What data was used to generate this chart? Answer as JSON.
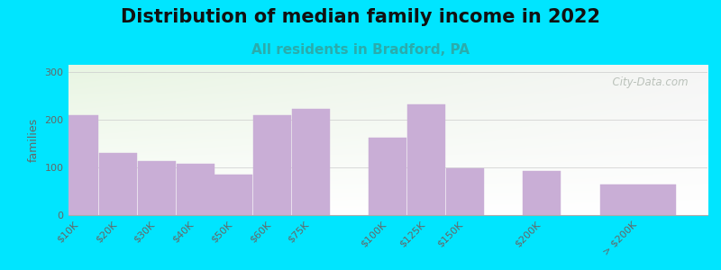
{
  "title": "Distribution of median family income in 2022",
  "subtitle": "All residents in Bradford, PA",
  "ylabel": "families",
  "categories": [
    "$10K",
    "$20K",
    "$30K",
    "$40K",
    "$50K",
    "$60K",
    "$75K",
    "$100K",
    "$125K",
    "$150K",
    "$200K",
    "> $200K"
  ],
  "values": [
    210,
    130,
    113,
    108,
    85,
    210,
    222,
    163,
    232,
    98,
    92,
    65
  ],
  "bar_positions": [
    0,
    1,
    2,
    3,
    4,
    5,
    6,
    8,
    9,
    10,
    12,
    14
  ],
  "bar_widths": [
    1,
    1,
    1,
    1,
    1,
    1,
    1,
    1,
    1,
    1,
    1,
    2
  ],
  "bar_color": "#c9aed6",
  "bar_edge_color": "#c9aed6",
  "background_color": "#00e5ff",
  "plot_bg_color_lt": "#e8f5e2",
  "plot_bg_color_rt": "#f5f5f5",
  "title_color": "#111111",
  "subtitle_color": "#2aacac",
  "ylabel_color": "#666666",
  "tick_color": "#666666",
  "yticks": [
    0,
    100,
    200,
    300
  ],
  "ylim": [
    0,
    315
  ],
  "xlim_left": -0.3,
  "xlim_right": 16.3,
  "watermark": "  City-Data.com",
  "watermark_color": "#b0b8b0",
  "title_fontsize": 15,
  "subtitle_fontsize": 11,
  "ylabel_fontsize": 9,
  "tick_fontsize": 8
}
